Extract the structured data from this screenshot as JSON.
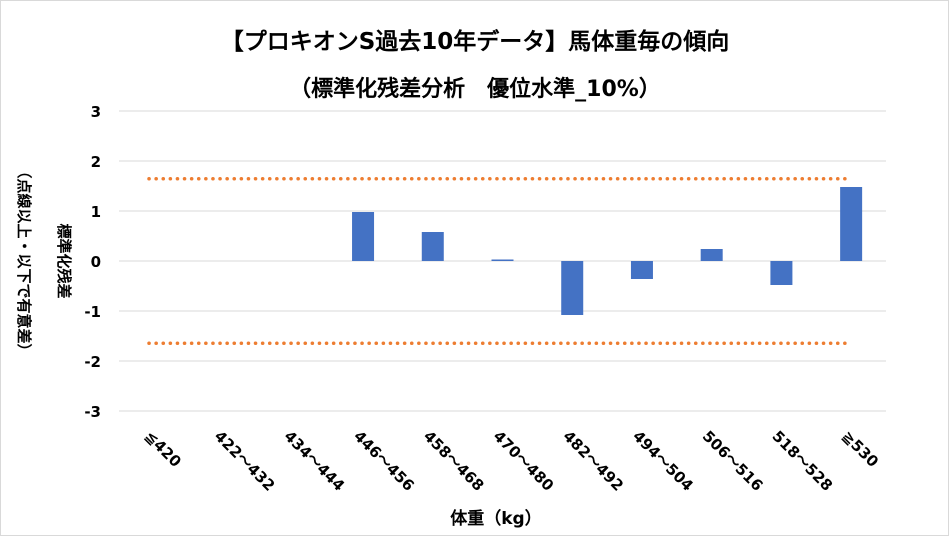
{
  "chart_data": {
    "type": "bar",
    "title": "【プロキオンS過去10年データ】馬体重毎の傾向",
    "subtitle": "（標準化残差分析　優位水準_10%）",
    "xlabel": "体重（kg）",
    "ylabel": "標準化残差",
    "ylabel_note": "（点線以上・以下で有意差）",
    "categories": [
      "≦420",
      "422～432",
      "434～444",
      "446～456",
      "458～468",
      "470～480",
      "482～492",
      "494～504",
      "506～516",
      "518～528",
      "≧530"
    ],
    "values": [
      null,
      null,
      null,
      0.98,
      0.58,
      0.03,
      -1.08,
      -0.36,
      0.24,
      -0.48,
      1.48
    ],
    "ylim": [
      -3,
      3
    ],
    "yticks": [
      3,
      2,
      1,
      0,
      -1,
      -2,
      -3
    ],
    "grid": true,
    "thresholds": [
      1.645,
      -1.645
    ],
    "colors": {
      "bar": "#4472c4",
      "threshold": "#ed7d31",
      "grid": "#d9d9d9"
    }
  }
}
